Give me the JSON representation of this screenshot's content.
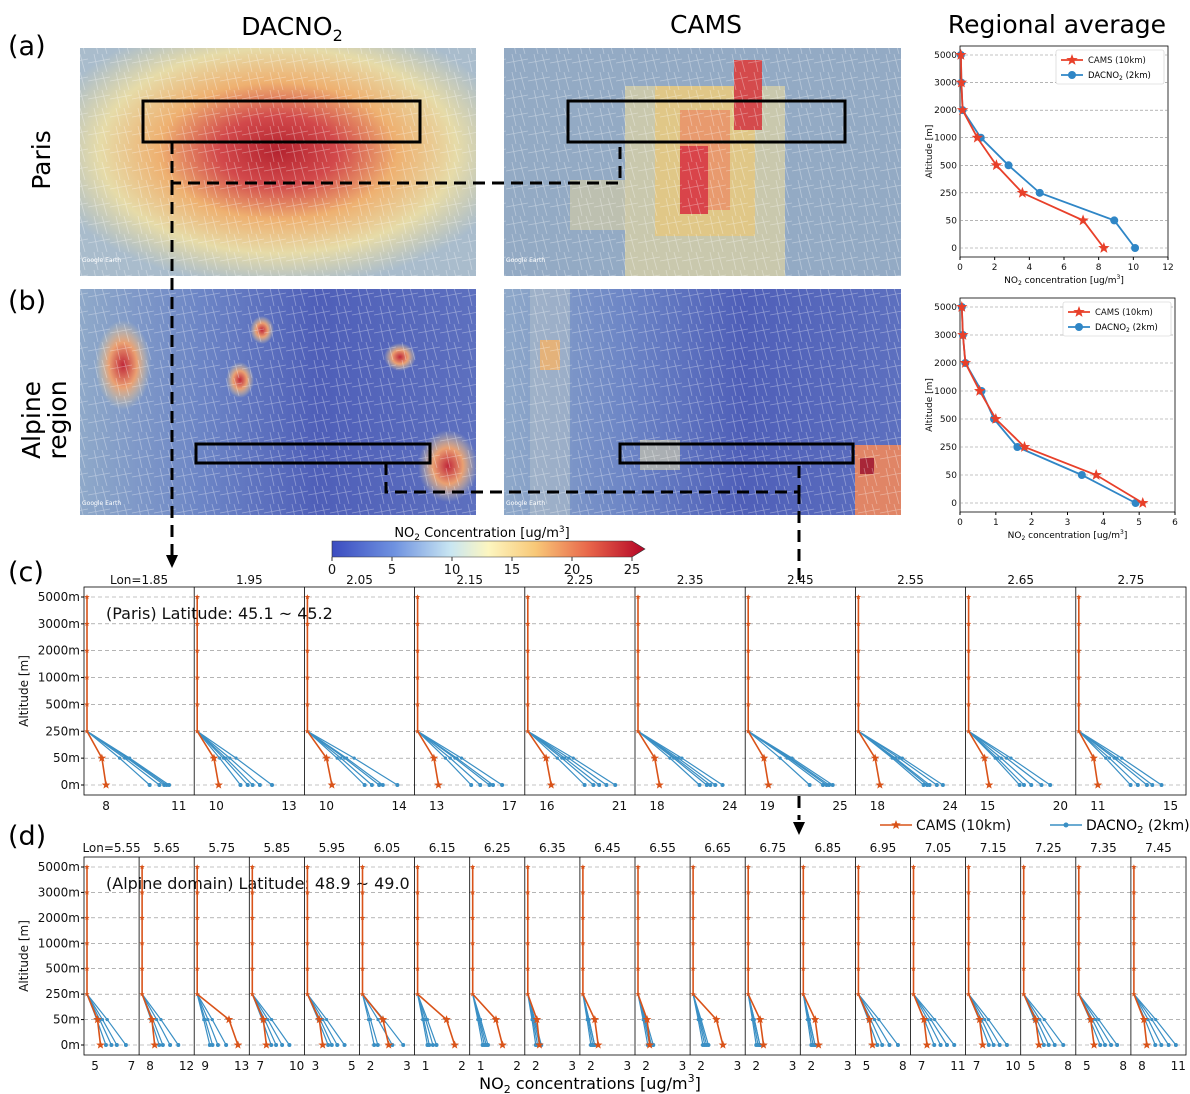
{
  "colors": {
    "cams": "#e8402a",
    "dacno2": "#2f86c6",
    "cams_small": "#d95319",
    "dacno2_small": "#3a8fc4",
    "frame": "#000000",
    "grid": "#888888",
    "cbar_low": "#3b4cc0",
    "cbar_high": "#b40426"
  },
  "headers": {
    "dacno2_pre": "DACNO",
    "dacno2_sub": "2",
    "cams": "CAMS",
    "regional": "Regional average"
  },
  "panels": {
    "a": "(a)",
    "b": "(b)",
    "c": "(c)",
    "d": "(d)"
  },
  "rows": {
    "paris": "Paris",
    "alpine_1": "Alpine",
    "alpine_2": "region"
  },
  "maps": {
    "watermark": "Google Earth",
    "icon_paris_dacno2": "heatmap-paris-dacno2",
    "icon_paris_cams": "heatmap-paris-cams",
    "icon_alpine_dacno2": "heatmap-alpine-dacno2",
    "icon_alpine_cams": "heatmap-alpine-cams"
  },
  "colorbar": {
    "label_pre": "NO",
    "label_sub": "2",
    "label_post": " Concentration [ug/m",
    "label_sup": "3",
    "label_end": "]",
    "ticks": [
      "0",
      "5",
      "10",
      "15",
      "20",
      "25"
    ]
  },
  "chart_data": [
    {
      "id": "paris_regional",
      "type": "line",
      "ylabel": "Altitude [m]",
      "xlabel_pre": "NO",
      "xlabel_sub": "2",
      "xlabel_post": " concentration [ug/m",
      "xlabel_sup": "3",
      "xlabel_end": "]",
      "xticks": [
        "0",
        "2",
        "4",
        "6",
        "8",
        "10",
        "12"
      ],
      "xlim": [
        0,
        12
      ],
      "yticks": [
        "0",
        "50",
        "250",
        "500",
        "1000",
        "2000",
        "3000",
        "5000"
      ],
      "legend": "top-right",
      "legend_cams": "CAMS (10km)",
      "legend_dacno2_pre": "DACNO",
      "legend_dacno2_sub": "2",
      "legend_dacno2_post": " (2km)",
      "series": [
        {
          "name": "CAMS (10km)",
          "values": [
            8.3,
            7.1,
            3.6,
            2.1,
            1.0,
            0.15,
            0.08,
            0.05
          ]
        },
        {
          "name": "DACNO2 (2km)",
          "values": [
            10.1,
            8.9,
            4.6,
            2.8,
            1.2,
            0.15,
            0.08,
            0.05
          ]
        }
      ]
    },
    {
      "id": "alpine_regional",
      "type": "line",
      "ylabel": "Altitude [m]",
      "xlabel_pre": "NO",
      "xlabel_sub": "2",
      "xlabel_post": " concentration [ug/m",
      "xlabel_sup": "3",
      "xlabel_end": "]",
      "xticks": [
        "0",
        "1",
        "2",
        "3",
        "4",
        "5",
        "6"
      ],
      "xlim": [
        0,
        6
      ],
      "yticks": [
        "0",
        "50",
        "250",
        "500",
        "1000",
        "2000",
        "3000",
        "5000"
      ],
      "legend": "top-right",
      "legend_cams": "CAMS (10km)",
      "legend_dacno2_pre": "DACNO",
      "legend_dacno2_sub": "2",
      "legend_dacno2_post": " (2km)",
      "series": [
        {
          "name": "CAMS (10km)",
          "values": [
            5.1,
            3.8,
            1.8,
            1.0,
            0.55,
            0.15,
            0.08,
            0.05
          ]
        },
        {
          "name": "DACNO2 (2km)",
          "values": [
            4.9,
            3.4,
            1.6,
            0.95,
            0.6,
            0.15,
            0.08,
            0.05
          ]
        }
      ]
    },
    {
      "id": "paris_profiles",
      "type": "line",
      "title": "(Paris) Latitude: 45.1 ~ 45.2",
      "ylabel": "Altitude [m]",
      "yticks": [
        "0m",
        "50m",
        "250m",
        "500m",
        "1000m",
        "2000m",
        "3000m",
        "5000m"
      ],
      "legend_cams": "CAMS  (10km)",
      "legend_dacno2_pre": "DACNO",
      "legend_dacno2_sub": "2",
      "legend_dacno2_post": "  (2km)",
      "subplots": [
        {
          "lon": "Lon=1.85",
          "xmin": "8",
          "xmax": "11",
          "cams": 8.0,
          "dac": [
            10.6,
            10.2,
            10.4,
            9.8,
            10.5
          ]
        },
        {
          "lon": "1.95",
          "xmin": "10",
          "xmax": "13",
          "cams": 10.1,
          "dac": [
            12.3,
            11.3,
            11.8,
            11.0,
            11.5
          ]
        },
        {
          "lon": "2.05",
          "xmin": "10",
          "xmax": "14",
          "cams": 10.3,
          "dac": [
            13.9,
            12.5,
            13.1,
            12.9,
            12.1
          ]
        },
        {
          "lon": "2.15",
          "xmin": "13",
          "xmax": "17",
          "cams": 13.1,
          "dac": [
            16.6,
            15.4,
            16.1,
            14.9,
            15.9
          ]
        },
        {
          "lon": "2.25",
          "xmin": "16",
          "xmax": "21",
          "cams": 16.3,
          "dac": [
            20.7,
            19.2,
            20.1,
            18.6,
            19.6
          ]
        },
        {
          "lon": "2.35",
          "xmin": "18",
          "xmax": "24",
          "cams": 18.2,
          "dac": [
            23.4,
            22.1,
            22.8,
            21.5,
            22.4
          ]
        },
        {
          "lon": "2.45",
          "xmin": "19",
          "xmax": "25",
          "cams": 19.1,
          "dac": [
            24.4,
            23.6,
            22.5,
            23.9,
            24.1
          ]
        },
        {
          "lon": "2.55",
          "xmin": "18",
          "xmax": "24",
          "cams": 18.2,
          "dac": [
            23.4,
            22.3,
            21.8,
            22.9,
            22.1
          ]
        },
        {
          "lon": "2.65",
          "xmin": "15",
          "xmax": "20",
          "cams": 15.1,
          "dac": [
            19.3,
            18.0,
            17.5,
            18.7,
            17.2
          ]
        },
        {
          "lon": "2.75",
          "xmin": "11",
          "xmax": "15",
          "cams": 11.0,
          "dac": [
            14.5,
            13.2,
            13.7,
            12.8,
            14.0
          ]
        }
      ]
    },
    {
      "id": "alpine_profiles",
      "type": "line",
      "title": "(Alpine domain) Latitude: 48.9 ~ 49.0",
      "ylabel": "Altitude [m]",
      "xlabel_pre": "NO",
      "xlabel_sub": "2",
      "xlabel_post": " concentrations [ug/m",
      "xlabel_sup": "3",
      "xlabel_end": "]",
      "yticks": [
        "0m",
        "50m",
        "250m",
        "500m",
        "1000m",
        "2000m",
        "3000m",
        "5000m"
      ],
      "subplots": [
        {
          "lon": "Lon=5.55",
          "xmin": "5",
          "xmax": "7",
          "cams": 5.3,
          "dac": [
            6.7,
            5.9,
            6.2,
            5.6
          ]
        },
        {
          "lon": "5.65",
          "xmin": "8",
          "xmax": "12",
          "cams": 8.5,
          "dac": [
            11.1,
            9.4,
            10.2,
            9.0
          ]
        },
        {
          "lon": "5.75",
          "xmin": "9",
          "xmax": "13",
          "cams": 12.6,
          "dac": [
            10.4,
            9.8,
            11.3,
            9.5
          ]
        },
        {
          "lon": "5.85",
          "xmin": "7",
          "xmax": "10",
          "cams": 7.5,
          "dac": [
            9.4,
            8.3,
            8.8,
            7.9
          ]
        },
        {
          "lon": "5.95",
          "xmin": "3",
          "xmax": "5",
          "cams": 3.4,
          "dac": [
            4.6,
            3.9,
            4.2,
            3.7
          ]
        },
        {
          "lon": "6.05",
          "xmin": "2",
          "xmax": "3",
          "cams": 2.5,
          "dac": [
            2.9,
            2.2,
            2.6,
            2.1
          ]
        },
        {
          "lon": "6.15",
          "xmin": "1",
          "xmax": "2",
          "cams": 1.8,
          "dac": [
            1.3,
            1.1,
            1.2,
            1.05
          ]
        },
        {
          "lon": "6.25",
          "xmin": "1",
          "xmax": "2",
          "cams": 1.6,
          "dac": [
            1.2,
            1.1,
            1.15,
            1.05
          ]
        },
        {
          "lon": "6.35",
          "xmin": "2",
          "xmax": "3",
          "cams": 2.1,
          "dac": [
            2.1,
            2.05,
            2.15,
            2.0
          ]
        },
        {
          "lon": "6.45",
          "xmin": "2",
          "xmax": "3",
          "cams": 2.2,
          "dac": [
            2.1,
            2.05,
            2.1,
            2.0
          ]
        },
        {
          "lon": "6.55",
          "xmin": "2",
          "xmax": "3",
          "cams": 2.1,
          "dac": [
            2.2,
            2.1,
            2.15,
            2.05
          ]
        },
        {
          "lon": "6.65",
          "xmin": "2",
          "xmax": "3",
          "cams": 2.6,
          "dac": [
            2.2,
            2.1,
            2.15,
            2.05
          ]
        },
        {
          "lon": "6.75",
          "xmin": "2",
          "xmax": "3",
          "cams": 2.2,
          "dac": [
            2.1,
            2.05,
            2.1,
            2.0
          ]
        },
        {
          "lon": "6.85",
          "xmin": "2",
          "xmax": "3",
          "cams": 2.2,
          "dac": [
            2.1,
            2.05,
            2.1,
            2.0
          ]
        },
        {
          "lon": "6.95",
          "xmin": "5",
          "xmax": "8",
          "cams": 5.5,
          "dac": [
            7.6,
            6.3,
            6.9,
            5.9
          ]
        },
        {
          "lon": "7.05",
          "xmin": "7",
          "xmax": "11",
          "cams": 7.6,
          "dac": [
            10.6,
            9.1,
            9.8,
            8.4
          ]
        },
        {
          "lon": "7.15",
          "xmin": "7",
          "xmax": "10",
          "cams": 7.5,
          "dac": [
            9.5,
            8.4,
            8.9,
            8.0
          ]
        },
        {
          "lon": "7.25",
          "xmin": "5",
          "xmax": "8",
          "cams": 5.6,
          "dac": [
            7.6,
            6.4,
            6.9,
            6.0
          ]
        },
        {
          "lon": "7.35",
          "xmin": "5",
          "xmax": "8",
          "cams": 5.6,
          "dac": [
            7.5,
            6.5,
            7.0,
            6.1
          ]
        },
        {
          "lon": "7.45",
          "xmin": "8",
          "xmax": "11",
          "cams": 8.4,
          "dac": [
            10.8,
            9.6,
            10.2,
            9.1
          ]
        }
      ]
    }
  ]
}
